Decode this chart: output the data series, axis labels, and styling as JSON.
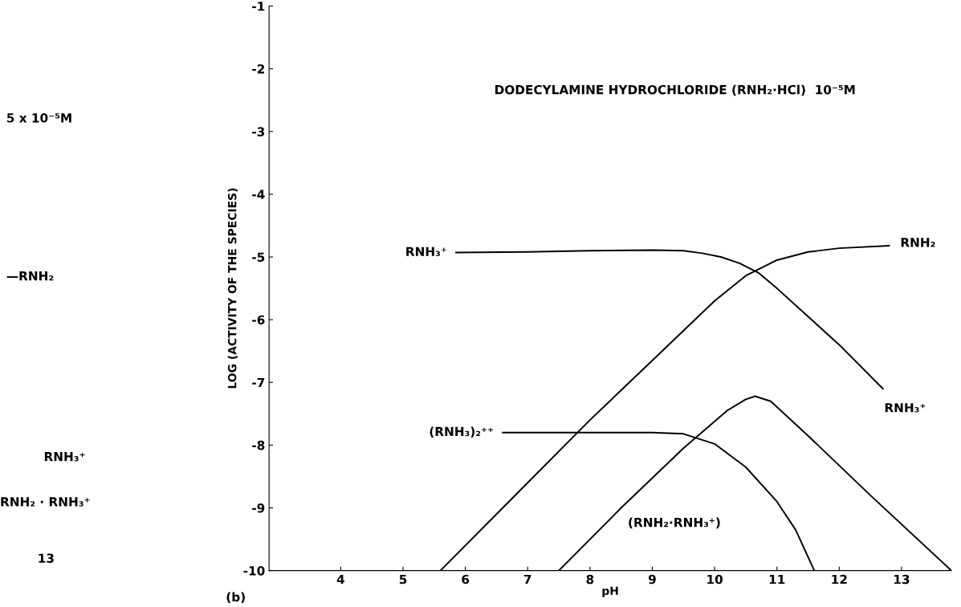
{
  "chart_data": [
    {
      "type": "other",
      "annotations": [
        "5 x 10⁻⁵M",
        "—RNH₂",
        "RNH₃⁺",
        "RNH₂ · RNH₃⁺",
        "13"
      ]
    },
    {
      "type": "line",
      "xlabel": "pH",
      "ylabel": "LOG (ACTIVITY OF THE SPECIES)",
      "xlim": [
        2.85,
        13.8
      ],
      "ylim": [
        -10,
        -1
      ],
      "xticks": [
        4,
        5,
        6,
        7,
        8,
        9,
        10,
        11,
        12,
        13
      ],
      "yticks": [
        -10,
        -9,
        -8,
        -7,
        -6,
        -5,
        -4,
        -3,
        -2,
        -1
      ],
      "grid": false,
      "marker": "none",
      "line_style": "solid",
      "series": [
        {
          "name": "RNH₃⁺",
          "color": "#000000",
          "x": [
            5.85,
            7,
            8,
            9,
            9.5,
            9.8,
            10.1,
            10.4,
            10.7,
            11,
            11.5,
            12,
            12.7
          ],
          "values": [
            -4.93,
            -4.92,
            -4.9,
            -4.89,
            -4.9,
            -4.94,
            -5.0,
            -5.1,
            -5.25,
            -5.5,
            -5.95,
            -6.4,
            -7.1
          ]
        },
        {
          "name": "RNH₂",
          "color": "#000000",
          "x": [
            5.6,
            7,
            8,
            9,
            10,
            10.5,
            11,
            11.5,
            12,
            12.8
          ],
          "values": [
            -10,
            -8.6,
            -7.6,
            -6.65,
            -5.7,
            -5.3,
            -5.05,
            -4.92,
            -4.86,
            -4.82
          ]
        },
        {
          "name": "(RNH₃)₂⁺⁺",
          "color": "#000000",
          "x": [
            6.6,
            8,
            9,
            9.5,
            10,
            10.5,
            11,
            11.3,
            11.6
          ],
          "values": [
            -7.8,
            -7.8,
            -7.8,
            -7.82,
            -7.98,
            -8.35,
            -8.9,
            -9.35,
            -10
          ]
        },
        {
          "name": "(RNH₂·RNH₃⁺)",
          "color": "#000000",
          "x": [
            7.5,
            8.5,
            9.5,
            10.2,
            10.5,
            10.65,
            10.9,
            11.5,
            12.5,
            13.8
          ],
          "values": [
            -10,
            -9.0,
            -8.05,
            -7.45,
            -7.27,
            -7.22,
            -7.3,
            -7.85,
            -8.8,
            -10
          ]
        }
      ],
      "annotations": [
        "DODECYLAMINE HYDROCHLORIDE (RNH₂·HCl)  10⁻⁵M",
        "(b)"
      ]
    }
  ]
}
